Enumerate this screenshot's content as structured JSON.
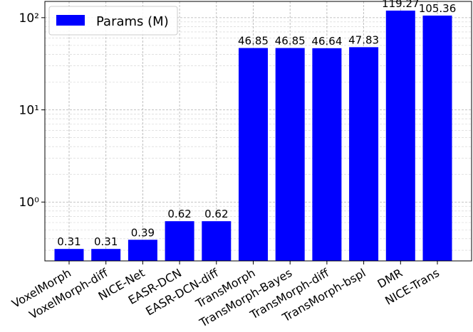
{
  "chart_data": {
    "type": "bar",
    "log_scale": true,
    "grid": true,
    "legend": "upper left",
    "series": [
      {
        "name": "Params (M)",
        "color": "#0000ff",
        "values": [
          0.31,
          0.31,
          0.39,
          0.62,
          0.62,
          46.85,
          46.85,
          46.64,
          47.83,
          119.27,
          105.36
        ]
      }
    ],
    "categories": [
      "VoxelMorph",
      "VoxelMorph-diff",
      "NICE-Net",
      "EASR-DCN",
      "EASR-DCN-diff",
      "TransMorph",
      "TransMorph-Bayes",
      "TransMorph-diff",
      "TransMorph-bspl",
      "DMR",
      "NICE-Trans"
    ],
    "ylim": [
      0.23,
      150
    ],
    "yticks": [
      {
        "value": 1,
        "label": "10⁰"
      },
      {
        "value": 10,
        "label": "10¹"
      },
      {
        "value": 100,
        "label": "10²"
      }
    ]
  }
}
